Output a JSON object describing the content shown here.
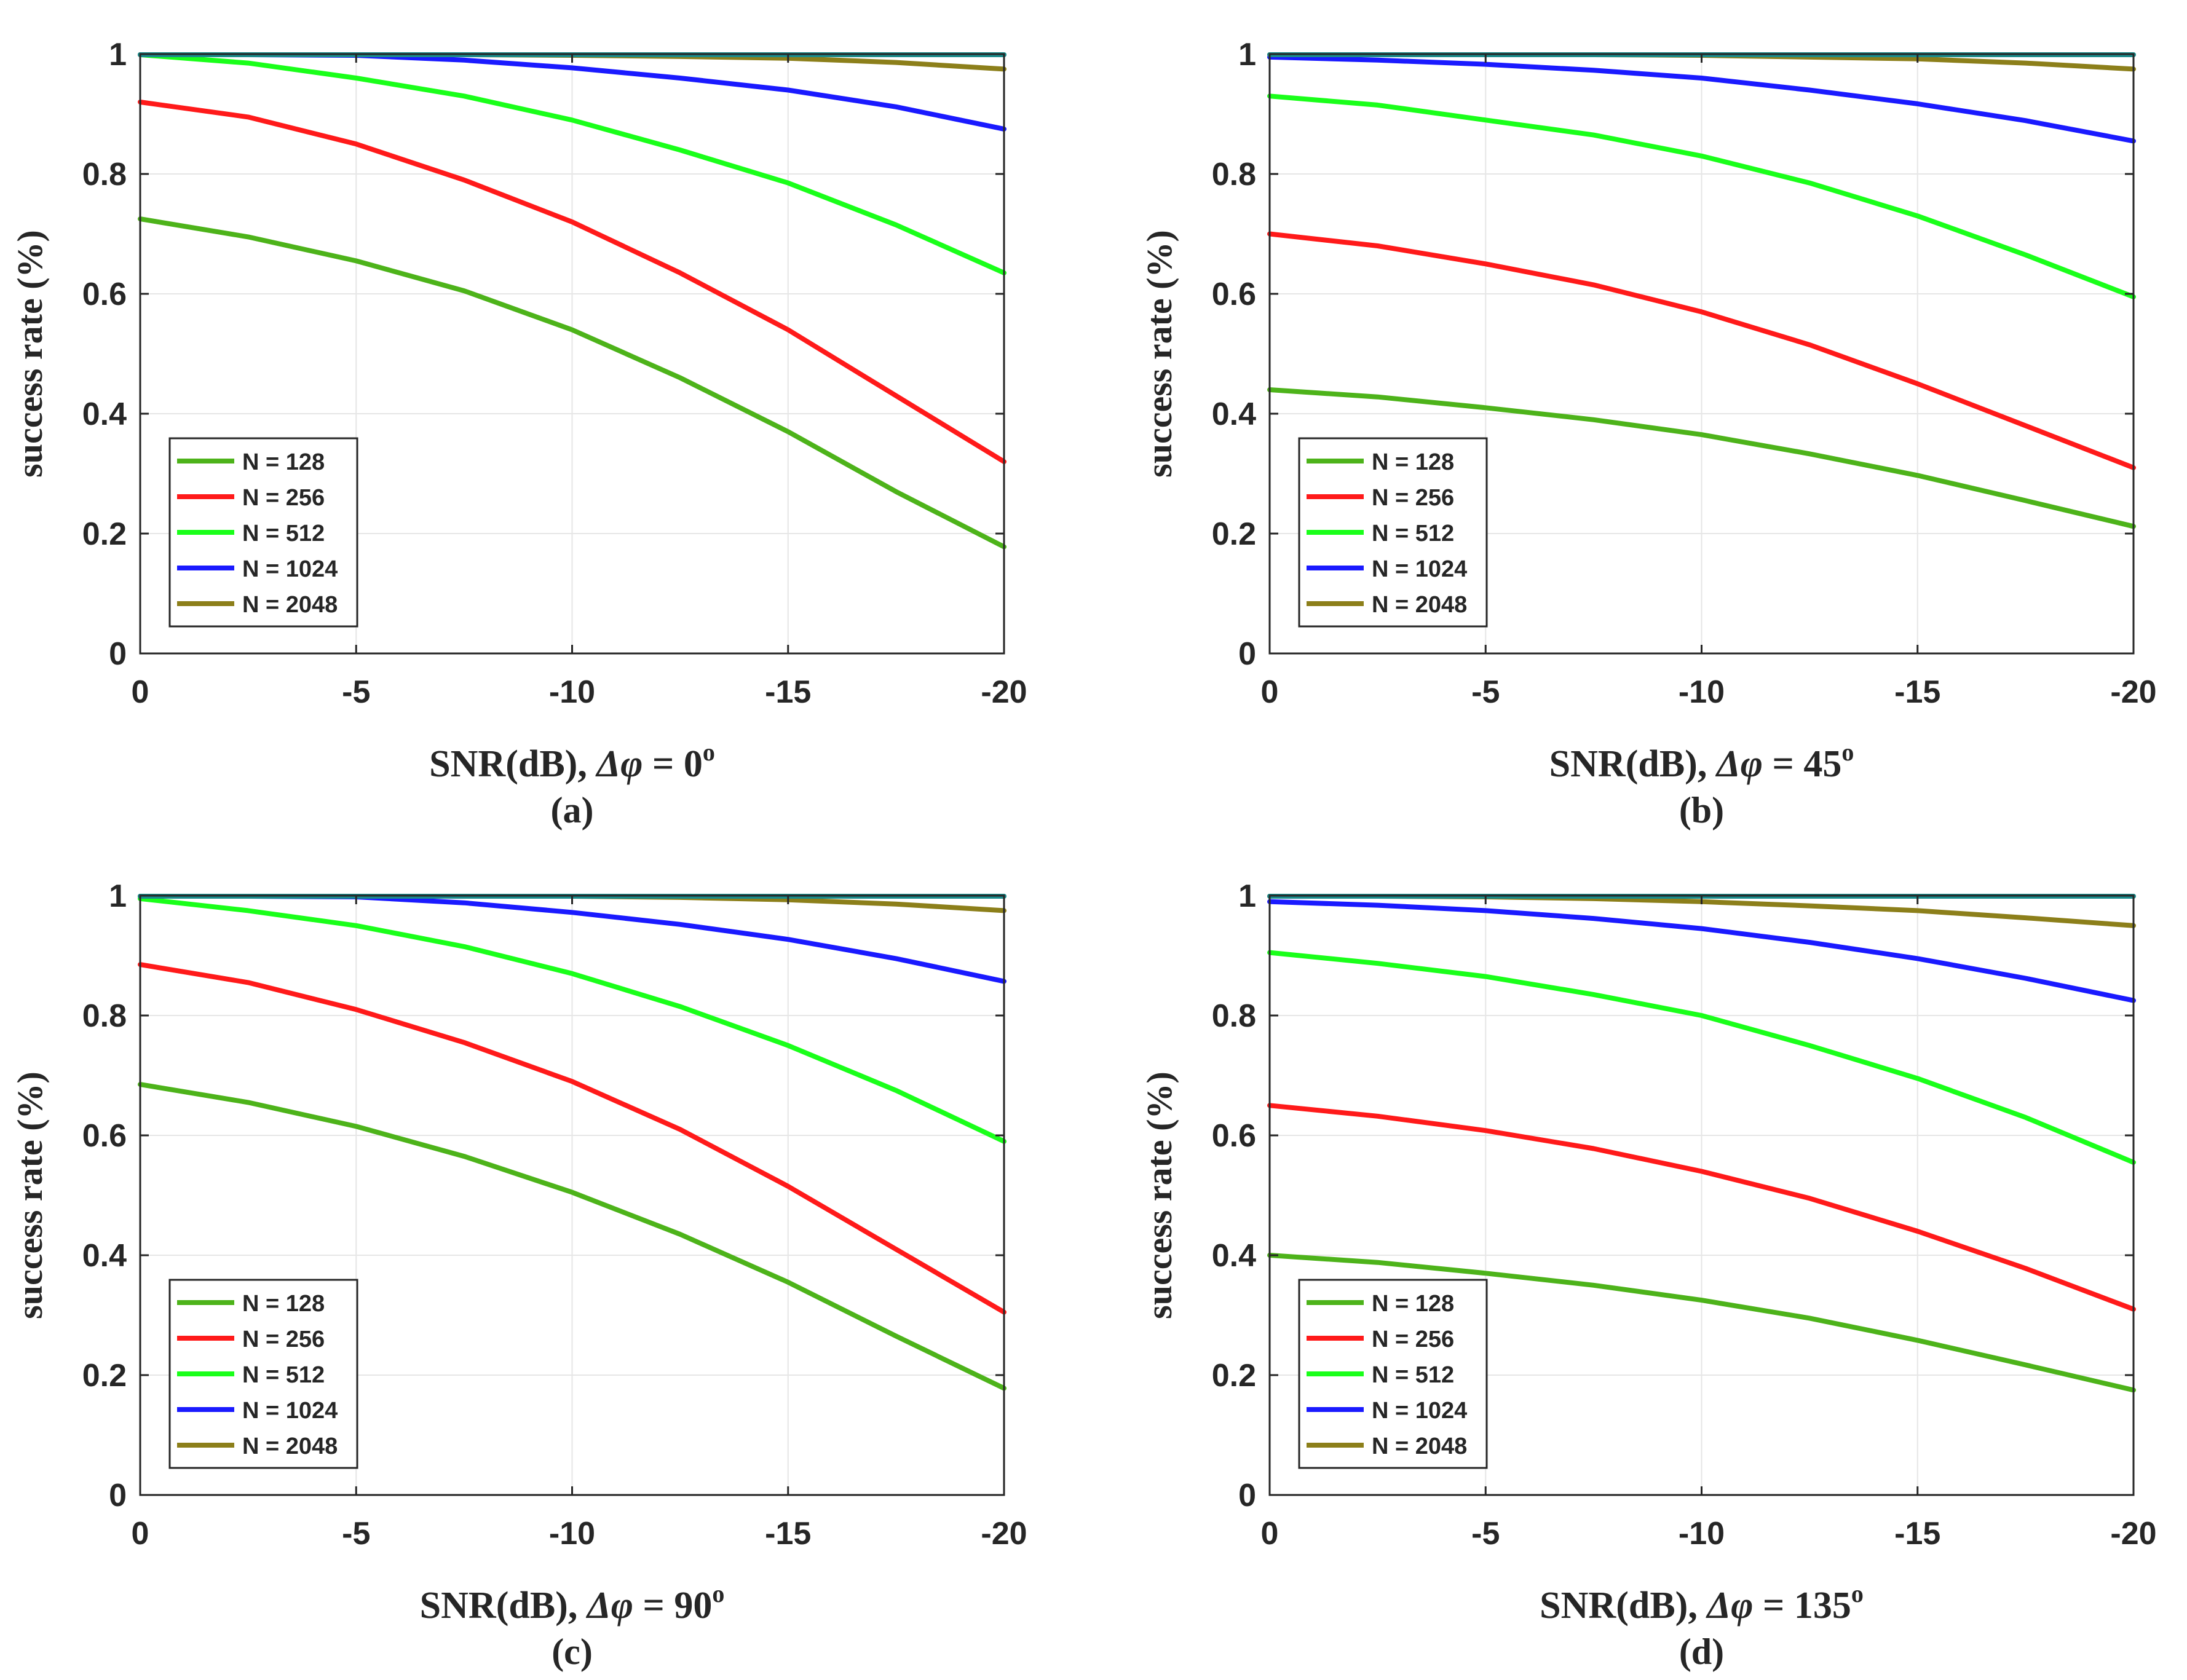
{
  "chart_data": [
    {
      "type": "line",
      "panel": "(a)",
      "xlabel_prefix": "SNR(dB),",
      "xlabel_symbol": "Δφ",
      "xlabel_value": "= 0",
      "xlabel_sup": "o",
      "ylabel": "success rate (%)",
      "xlim": [
        0,
        -20
      ],
      "ylim": [
        0,
        1
      ],
      "xticks": [
        0,
        -5,
        -10,
        -15,
        -20
      ],
      "xtick_labels": [
        "0",
        "-5",
        "-10",
        "-15",
        "-20"
      ],
      "yticks": [
        0,
        0.2,
        0.4,
        0.6,
        0.8,
        1
      ],
      "ytick_labels": [
        "0",
        "0.2",
        "0.4",
        "0.6",
        "0.8",
        "1"
      ],
      "grid": true,
      "legend_position": "bottom-left",
      "x": [
        0,
        -2.5,
        -5,
        -7.5,
        -10,
        -12.5,
        -15,
        -17.5,
        -20
      ],
      "series": [
        {
          "name": "N = 128",
          "color": "#4db31a",
          "values": [
            0.725,
            0.695,
            0.655,
            0.605,
            0.54,
            0.46,
            0.37,
            0.27,
            0.178
          ]
        },
        {
          "name": "N = 256",
          "color": "#ff1a1a",
          "values": [
            0.92,
            0.895,
            0.85,
            0.79,
            0.72,
            0.635,
            0.54,
            0.43,
            0.32
          ]
        },
        {
          "name": "N = 512",
          "color": "#1aff1a",
          "values": [
            1.0,
            0.985,
            0.96,
            0.93,
            0.89,
            0.84,
            0.785,
            0.715,
            0.635
          ]
        },
        {
          "name": "N = 1024",
          "color": "#1a1aff",
          "values": [
            1.0,
            1.0,
            0.998,
            0.99,
            0.977,
            0.96,
            0.94,
            0.912,
            0.875
          ]
        },
        {
          "name": "N = 2048",
          "color": "#8c7f1a",
          "values": [
            1.0,
            1.0,
            1.0,
            1.0,
            0.998,
            0.996,
            0.993,
            0.986,
            0.975
          ]
        },
        {
          "name": "",
          "color": "#1a8c8c",
          "values": [
            1.0,
            1.0,
            1.0,
            1.0,
            1.0,
            1.0,
            1.0,
            1.0,
            1.0
          ]
        }
      ]
    },
    {
      "type": "line",
      "panel": "(b)",
      "xlabel_prefix": "SNR(dB),",
      "xlabel_symbol": "Δφ",
      "xlabel_value": "= 45",
      "xlabel_sup": "o",
      "ylabel": "success rate (%)",
      "xlim": [
        0,
        -20
      ],
      "ylim": [
        0,
        1
      ],
      "xticks": [
        0,
        -5,
        -10,
        -15,
        -20
      ],
      "xtick_labels": [
        "0",
        "-5",
        "-10",
        "-15",
        "-20"
      ],
      "yticks": [
        0,
        0.2,
        0.4,
        0.6,
        0.8,
        1
      ],
      "ytick_labels": [
        "0",
        "0.2",
        "0.4",
        "0.6",
        "0.8",
        "1"
      ],
      "grid": true,
      "legend_position": "bottom-left",
      "x": [
        0,
        -2.5,
        -5,
        -7.5,
        -10,
        -12.5,
        -15,
        -17.5,
        -20
      ],
      "series": [
        {
          "name": "N = 128",
          "color": "#4db31a",
          "values": [
            0.44,
            0.428,
            0.41,
            0.39,
            0.365,
            0.333,
            0.297,
            0.255,
            0.212
          ]
        },
        {
          "name": "N = 256",
          "color": "#ff1a1a",
          "values": [
            0.7,
            0.68,
            0.65,
            0.615,
            0.57,
            0.515,
            0.45,
            0.38,
            0.31
          ]
        },
        {
          "name": "N = 512",
          "color": "#1aff1a",
          "values": [
            0.93,
            0.915,
            0.89,
            0.865,
            0.83,
            0.785,
            0.73,
            0.665,
            0.595
          ]
        },
        {
          "name": "N = 1024",
          "color": "#1a1aff",
          "values": [
            0.995,
            0.99,
            0.983,
            0.973,
            0.96,
            0.94,
            0.917,
            0.889,
            0.855
          ]
        },
        {
          "name": "N = 2048",
          "color": "#8c7f1a",
          "values": [
            1.0,
            1.0,
            1.0,
            1.0,
            0.998,
            0.995,
            0.992,
            0.985,
            0.975
          ]
        },
        {
          "name": "",
          "color": "#1a8c8c",
          "values": [
            1.0,
            1.0,
            1.0,
            1.0,
            1.0,
            1.0,
            1.0,
            1.0,
            1.0
          ]
        }
      ]
    },
    {
      "type": "line",
      "panel": "(c)",
      "xlabel_prefix": "SNR(dB),",
      "xlabel_symbol": "Δφ",
      "xlabel_value": "= 90",
      "xlabel_sup": "o",
      "ylabel": "success rate (%)",
      "xlim": [
        0,
        -20
      ],
      "ylim": [
        0,
        1
      ],
      "xticks": [
        0,
        -5,
        -10,
        -15,
        -20
      ],
      "xtick_labels": [
        "0",
        "-5",
        "-10",
        "-15",
        "-20"
      ],
      "yticks": [
        0,
        0.2,
        0.4,
        0.6,
        0.8,
        1
      ],
      "ytick_labels": [
        "0",
        "0.2",
        "0.4",
        "0.6",
        "0.8",
        "1"
      ],
      "grid": true,
      "legend_position": "bottom-left",
      "x": [
        0,
        -2.5,
        -5,
        -7.5,
        -10,
        -12.5,
        -15,
        -17.5,
        -20
      ],
      "series": [
        {
          "name": "N = 128",
          "color": "#4db31a",
          "values": [
            0.685,
            0.655,
            0.615,
            0.565,
            0.505,
            0.435,
            0.355,
            0.265,
            0.178
          ]
        },
        {
          "name": "N = 256",
          "color": "#ff1a1a",
          "values": [
            0.885,
            0.855,
            0.81,
            0.755,
            0.69,
            0.61,
            0.515,
            0.41,
            0.305
          ]
        },
        {
          "name": "N = 512",
          "color": "#1aff1a",
          "values": [
            0.995,
            0.975,
            0.95,
            0.915,
            0.87,
            0.815,
            0.75,
            0.675,
            0.59
          ]
        },
        {
          "name": "N = 1024",
          "color": "#1a1aff",
          "values": [
            1.0,
            1.0,
            0.998,
            0.988,
            0.972,
            0.952,
            0.927,
            0.895,
            0.857
          ]
        },
        {
          "name": "N = 2048",
          "color": "#8c7f1a",
          "values": [
            1.0,
            1.0,
            1.0,
            1.0,
            0.999,
            0.997,
            0.993,
            0.986,
            0.975
          ]
        },
        {
          "name": "",
          "color": "#1a8c8c",
          "values": [
            1.0,
            1.0,
            1.0,
            1.0,
            1.0,
            1.0,
            1.0,
            1.0,
            1.0
          ]
        }
      ]
    },
    {
      "type": "line",
      "panel": "(d)",
      "xlabel_prefix": "SNR(dB),",
      "xlabel_symbol": "Δφ",
      "xlabel_value": "= 135",
      "xlabel_sup": "o",
      "ylabel": "success rate (%)",
      "xlim": [
        0,
        -20
      ],
      "ylim": [
        0,
        1
      ],
      "xticks": [
        0,
        -5,
        -10,
        -15,
        -20
      ],
      "xtick_labels": [
        "0",
        "-5",
        "-10",
        "-15",
        "-20"
      ],
      "yticks": [
        0,
        0.2,
        0.4,
        0.6,
        0.8,
        1
      ],
      "ytick_labels": [
        "0",
        "0.2",
        "0.4",
        "0.6",
        "0.8",
        "1"
      ],
      "grid": true,
      "legend_position": "bottom-left",
      "x": [
        0,
        -2.5,
        -5,
        -7.5,
        -10,
        -12.5,
        -15,
        -17.5,
        -20
      ],
      "series": [
        {
          "name": "N = 128",
          "color": "#4db31a",
          "values": [
            0.4,
            0.388,
            0.37,
            0.35,
            0.325,
            0.295,
            0.258,
            0.217,
            0.175
          ]
        },
        {
          "name": "N = 256",
          "color": "#ff1a1a",
          "values": [
            0.65,
            0.632,
            0.608,
            0.578,
            0.54,
            0.495,
            0.44,
            0.378,
            0.31
          ]
        },
        {
          "name": "N = 512",
          "color": "#1aff1a",
          "values": [
            0.905,
            0.887,
            0.865,
            0.835,
            0.8,
            0.75,
            0.695,
            0.63,
            0.555
          ]
        },
        {
          "name": "N = 1024",
          "color": "#1a1aff",
          "values": [
            0.99,
            0.984,
            0.975,
            0.962,
            0.945,
            0.922,
            0.895,
            0.862,
            0.825
          ]
        },
        {
          "name": "N = 2048",
          "color": "#8c7f1a",
          "values": [
            1.0,
            1.0,
            0.998,
            0.995,
            0.99,
            0.983,
            0.975,
            0.963,
            0.95
          ]
        },
        {
          "name": "",
          "color": "#1a8c8c",
          "values": [
            1.0,
            1.0,
            1.0,
            1.0,
            1.0,
            1.0,
            1.0,
            1.0,
            1.0
          ]
        }
      ]
    }
  ]
}
